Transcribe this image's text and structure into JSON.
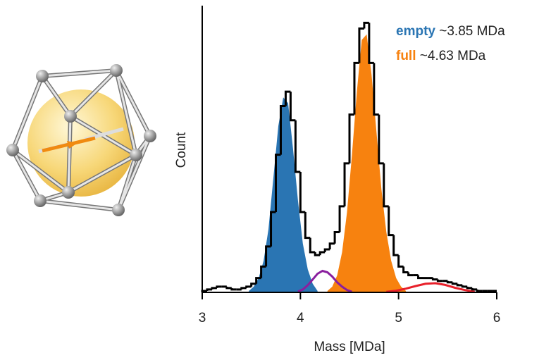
{
  "chart_data": {
    "type": "histogram",
    "xlabel": "Mass [MDa]",
    "ylabel": "Count",
    "xlim": [
      3,
      6
    ],
    "xticks": [
      3,
      4,
      5,
      6
    ],
    "ylim": [
      0,
      100
    ],
    "color": "#000000",
    "bins": [
      3.0,
      3.05,
      3.1,
      3.15,
      3.2,
      3.25,
      3.3,
      3.35,
      3.4,
      3.45,
      3.5,
      3.55,
      3.6,
      3.65,
      3.7,
      3.75,
      3.8,
      3.85,
      3.9,
      3.95,
      4.0,
      4.05,
      4.1,
      4.15,
      4.2,
      4.25,
      4.3,
      4.35,
      4.4,
      4.45,
      4.5,
      4.55,
      4.6,
      4.65,
      4.7,
      4.75,
      4.8,
      4.85,
      4.9,
      4.95,
      5.0,
      5.05,
      5.1,
      5.15,
      5.2,
      5.25,
      5.3,
      5.35,
      5.4,
      5.45,
      5.5,
      5.55,
      5.6,
      5.65,
      5.7,
      5.75,
      5.8,
      5.85,
      5.9,
      5.95,
      6.0
    ],
    "counts": [
      0.5,
      1,
      1.5,
      2,
      2,
      1.5,
      1,
      1,
      1.5,
      2,
      3,
      5,
      9,
      16,
      28,
      48,
      65,
      70,
      60,
      42,
      28,
      19,
      14,
      13,
      14,
      15,
      17,
      21,
      30,
      45,
      62,
      80,
      92,
      94,
      80,
      62,
      45,
      30,
      20,
      13,
      9,
      7,
      6,
      6,
      5,
      5,
      5,
      4.5,
      4,
      4,
      3.5,
      3,
      2.5,
      2,
      1.5,
      1,
      0.5,
      0.5,
      0.5,
      0.5
    ],
    "series": [
      {
        "name": "empty",
        "annotation": "~3.85 MDa",
        "color": "#2a75b3",
        "fill": true,
        "x": [
          3.475,
          3.525,
          3.575,
          3.625,
          3.675,
          3.725,
          3.775,
          3.825,
          3.875,
          3.925,
          3.975,
          4.025,
          4.075,
          4.125,
          4.175
        ],
        "values": [
          0.5,
          2,
          5,
          11,
          22,
          40,
          58,
          68,
          66,
          50,
          32,
          17,
          8,
          3,
          0.5
        ]
      },
      {
        "name": "full",
        "annotation": "~4.63 MDa",
        "color": "#f7820f",
        "fill": true,
        "x": [
          4.275,
          4.325,
          4.375,
          4.425,
          4.475,
          4.525,
          4.575,
          4.625,
          4.675,
          4.725,
          4.775,
          4.825,
          4.875,
          4.925,
          4.975,
          5.025,
          5.075
        ],
        "values": [
          0.5,
          2,
          6,
          14,
          28,
          48,
          70,
          88,
          90,
          76,
          56,
          36,
          21,
          11,
          5,
          2,
          0.5
        ]
      },
      {
        "color": "#8a1f9e",
        "fill": false,
        "x": [
          3.975,
          4.025,
          4.075,
          4.125,
          4.175,
          4.225,
          4.275,
          4.325,
          4.375,
          4.425,
          4.475,
          4.525
        ],
        "values": [
          0.3,
          1,
          2.5,
          4.5,
          6.5,
          7.5,
          7,
          5.5,
          3.5,
          2,
          0.8,
          0.2
        ]
      },
      {
        "color": "#e8202a",
        "fill": false,
        "x": [
          4.875,
          4.975,
          5.075,
          5.175,
          5.275,
          5.375,
          5.475,
          5.575,
          5.675,
          5.775
        ],
        "values": [
          0.2,
          0.6,
          1.3,
          2.2,
          3,
          3.2,
          2.6,
          1.6,
          0.8,
          0.2
        ]
      }
    ]
  }
}
